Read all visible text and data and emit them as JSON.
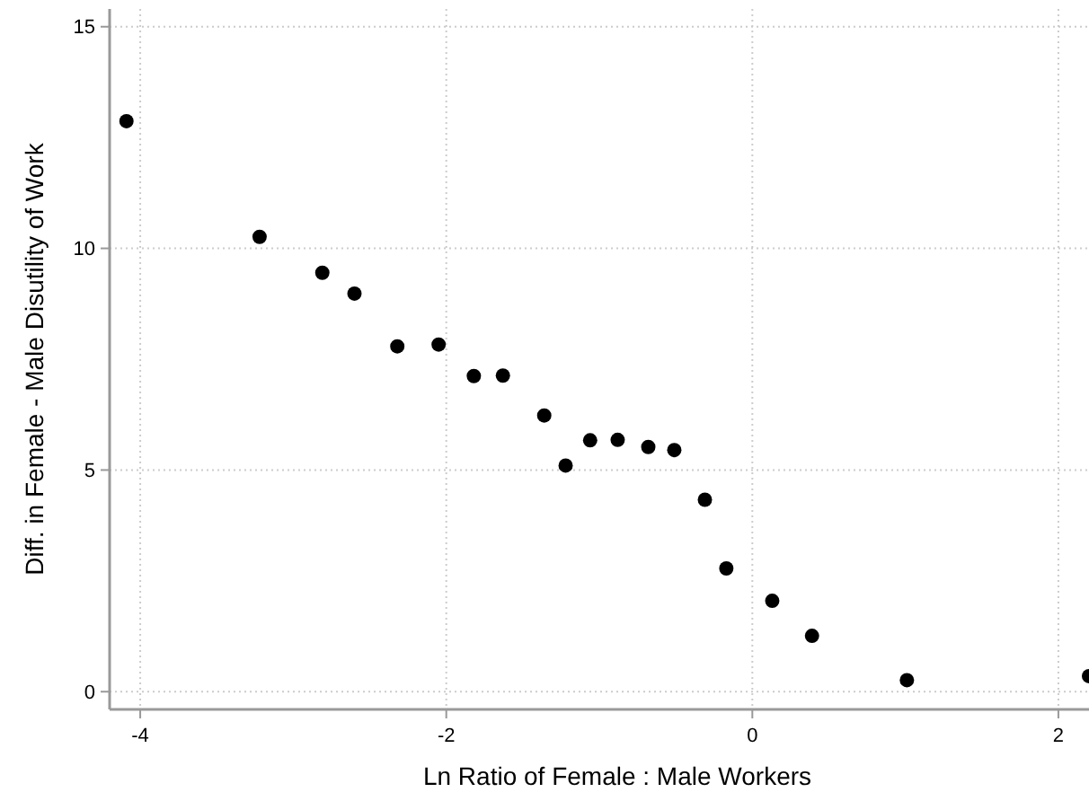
{
  "chart_data": {
    "type": "scatter",
    "xlabel": "Ln Ratio of Female : Male Workers",
    "ylabel": "Diff. in Female - Male Disutility of Work",
    "x": [
      -4.09,
      -3.22,
      -2.81,
      -2.6,
      -2.32,
      -2.05,
      -1.82,
      -1.63,
      -1.36,
      -1.22,
      -1.06,
      -0.88,
      -0.68,
      -0.51,
      -0.31,
      -0.17,
      0.13,
      0.39,
      1.01,
      2.2
    ],
    "series": [
      {
        "color": "#000000",
        "values": [
          12.87,
          10.26,
          9.45,
          8.98,
          7.79,
          7.83,
          7.12,
          7.13,
          6.23,
          5.1,
          5.67,
          5.68,
          5.52,
          5.45,
          4.33,
          2.78,
          2.05,
          1.26,
          0.26,
          0.35
        ]
      }
    ],
    "xlim": [
      -4.2,
      2.2
    ],
    "ylim": [
      -0.4,
      15.4
    ],
    "xticks": [
      -4,
      -2,
      0,
      2
    ],
    "yticks": [
      0,
      5,
      10,
      15
    ],
    "grid": true,
    "marker": "circle"
  }
}
